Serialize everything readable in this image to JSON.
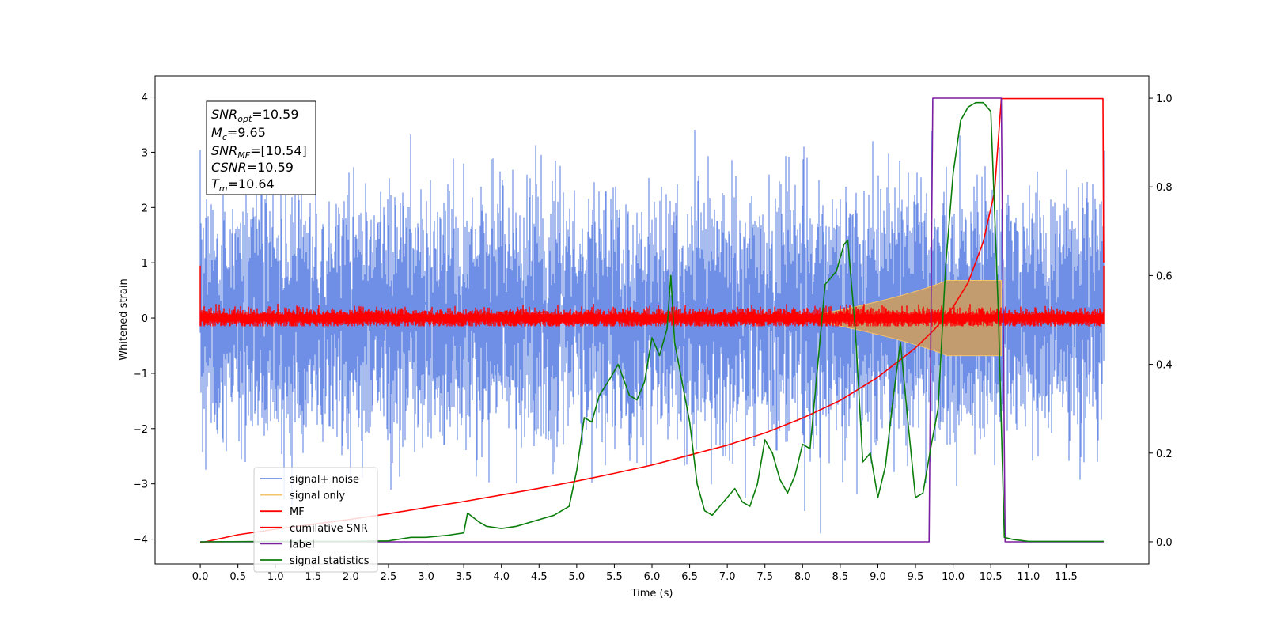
{
  "chart_data": {
    "type": "line",
    "xlabel": "Time (s)",
    "ylabel": "Whitened strain",
    "xlim": [
      -0.6,
      12.6
    ],
    "ylim": [
      -4.45,
      4.38
    ],
    "y2lim": [
      -0.05,
      1.05
    ],
    "x_ticks": [
      "0.0",
      "0.5",
      "1.0",
      "1.5",
      "2.0",
      "2.5",
      "3.0",
      "3.5",
      "4.0",
      "4.5",
      "5.0",
      "5.5",
      "6.0",
      "6.5",
      "7.0",
      "7.5",
      "8.0",
      "8.5",
      "9.0",
      "9.5",
      "10.0",
      "10.5",
      "11.0",
      "11.5"
    ],
    "y_ticks": [
      "−4",
      "−3",
      "−2",
      "−1",
      "0",
      "1",
      "2",
      "3",
      "4"
    ],
    "y2_ticks": [
      "0.0",
      "0.2",
      "0.4",
      "0.6",
      "0.8",
      "1.0"
    ],
    "legend_position": "lower-left",
    "grid": false,
    "annotations": {
      "snr_opt": "10.59",
      "mc": "9.65",
      "snr_mf": "[10.54]",
      "csnr": "10.59",
      "tm": "10.64"
    },
    "series": [
      {
        "name": "signal+ noise",
        "color": "#6f8fe6",
        "axis": "left",
        "noise_std": 0.95,
        "x_range": [
          0.0,
          12.0
        ]
      },
      {
        "name": "signal only",
        "color": "#f5c36b",
        "axis": "left",
        "chirp_end": 10.64,
        "peak_amplitude": 0.68
      },
      {
        "name": "MF",
        "color": "#ff0000",
        "axis": "left",
        "noise_std": 0.07
      },
      {
        "name": "cumilative SNR",
        "color": "#ff0000",
        "axis": "left",
        "x": [
          0.0,
          0.5,
          1.0,
          1.5,
          2.0,
          2.5,
          3.0,
          3.5,
          4.0,
          4.5,
          5.0,
          5.5,
          6.0,
          6.5,
          7.0,
          7.5,
          8.0,
          8.5,
          9.0,
          9.5,
          9.75,
          10.0,
          10.2,
          10.4,
          10.55,
          10.64,
          11.0,
          11.99,
          12.0
        ],
        "y": [
          -4.07,
          -3.92,
          -3.82,
          -3.73,
          -3.64,
          -3.54,
          -3.43,
          -3.32,
          -3.2,
          -3.08,
          -2.95,
          -2.81,
          -2.66,
          -2.48,
          -2.3,
          -2.08,
          -1.81,
          -1.49,
          -1.07,
          -0.54,
          -0.21,
          0.2,
          0.64,
          1.38,
          2.28,
          3.97,
          3.97,
          3.97,
          1.0
        ]
      },
      {
        "name": "label",
        "color": "#7b1fa2",
        "axis": "right",
        "x": [
          0.0,
          9.68,
          9.73,
          10.64,
          10.69,
          12.0
        ],
        "y": [
          0.0,
          0.0,
          1.0,
          1.0,
          0.0,
          0.0
        ]
      },
      {
        "name": "signal statistics",
        "color": "#0b7d0b",
        "axis": "right",
        "x": [
          0.0,
          1.0,
          2.0,
          2.5,
          2.8,
          3.0,
          3.3,
          3.5,
          3.55,
          3.7,
          3.8,
          4.0,
          4.2,
          4.5,
          4.7,
          4.9,
          5.0,
          5.1,
          5.2,
          5.3,
          5.45,
          5.55,
          5.7,
          5.8,
          5.9,
          6.0,
          6.1,
          6.2,
          6.25,
          6.3,
          6.5,
          6.6,
          6.7,
          6.8,
          6.9,
          7.0,
          7.1,
          7.2,
          7.3,
          7.4,
          7.5,
          7.6,
          7.7,
          7.8,
          7.9,
          8.0,
          8.1,
          8.3,
          8.45,
          8.55,
          8.6,
          8.7,
          8.8,
          8.9,
          9.0,
          9.1,
          9.2,
          9.3,
          9.4,
          9.5,
          9.6,
          9.7,
          9.8,
          9.9,
          10.0,
          10.1,
          10.2,
          10.3,
          10.4,
          10.5,
          10.6,
          10.68,
          10.8,
          11.0,
          12.0
        ],
        "y": [
          0.0,
          0.001,
          0.001,
          0.002,
          0.01,
          0.01,
          0.015,
          0.02,
          0.065,
          0.045,
          0.035,
          0.03,
          0.035,
          0.05,
          0.06,
          0.08,
          0.16,
          0.28,
          0.27,
          0.33,
          0.37,
          0.4,
          0.33,
          0.32,
          0.36,
          0.46,
          0.42,
          0.48,
          0.6,
          0.45,
          0.27,
          0.13,
          0.07,
          0.06,
          0.08,
          0.1,
          0.12,
          0.09,
          0.08,
          0.13,
          0.23,
          0.2,
          0.14,
          0.11,
          0.15,
          0.22,
          0.21,
          0.58,
          0.61,
          0.67,
          0.68,
          0.48,
          0.18,
          0.2,
          0.1,
          0.17,
          0.32,
          0.45,
          0.27,
          0.1,
          0.11,
          0.21,
          0.3,
          0.62,
          0.83,
          0.95,
          0.98,
          0.99,
          0.99,
          0.97,
          0.52,
          0.01,
          0.005,
          0.001,
          0.001
        ]
      }
    ]
  }
}
